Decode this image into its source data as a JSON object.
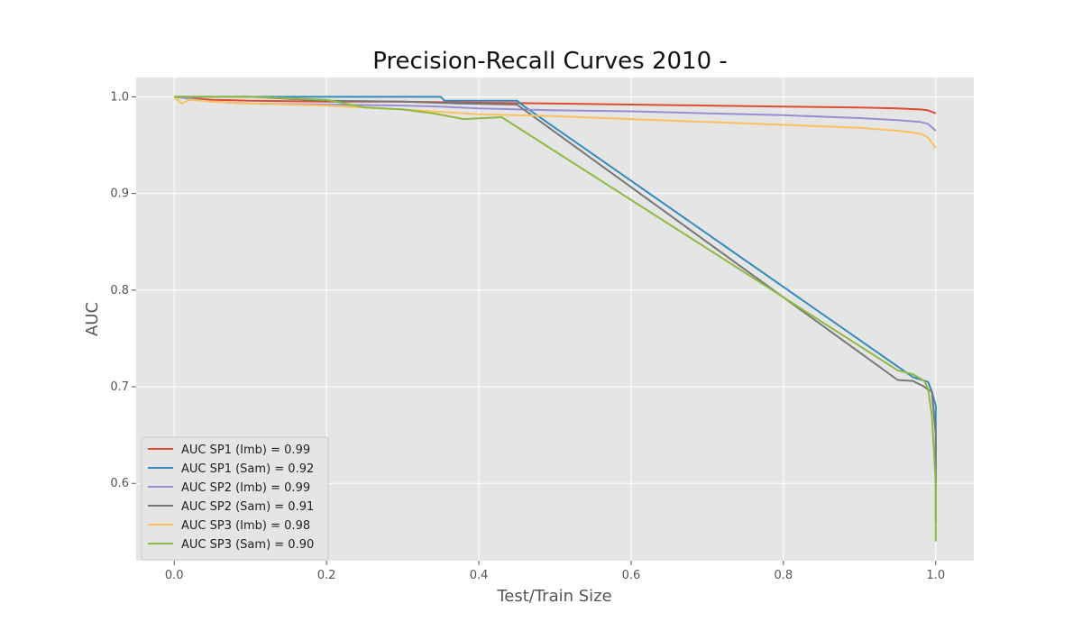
{
  "chart_data": {
    "type": "line",
    "title": "Precision-Recall Curves 2010 -",
    "xlabel": "Test/Train Size",
    "ylabel": "AUC",
    "xlim": [
      -0.05,
      1.05
    ],
    "ylim": [
      0.52,
      1.02
    ],
    "xticks": [
      0.0,
      0.2,
      0.4,
      0.6,
      0.8,
      1.0
    ],
    "xtick_labels": [
      "0.0",
      "0.2",
      "0.4",
      "0.6",
      "0.8",
      "1.0"
    ],
    "yticks": [
      0.6,
      0.7,
      0.8,
      0.9,
      1.0
    ],
    "ytick_labels": [
      "0.6",
      "0.7",
      "0.8",
      "0.9",
      "1.0"
    ],
    "grid": true,
    "legend_position": "bottom-left",
    "series": [
      {
        "name": "AUC SP1 (Imb) = 0.99",
        "color": "#E24A33",
        "x": [
          0.0,
          0.05,
          0.1,
          0.2,
          0.3,
          0.4,
          0.5,
          0.6,
          0.7,
          0.8,
          0.9,
          0.95,
          0.98,
          0.99,
          1.0
        ],
        "y": [
          1.0,
          0.997,
          0.996,
          0.995,
          0.995,
          0.994,
          0.993,
          0.992,
          0.991,
          0.99,
          0.989,
          0.988,
          0.987,
          0.986,
          0.983
        ]
      },
      {
        "name": "AUC SP1 (Sam) = 0.92",
        "color": "#348ABD",
        "x": [
          0.0,
          0.1,
          0.2,
          0.3,
          0.35,
          0.355,
          0.45,
          0.46,
          0.97,
          0.99,
          0.995,
          1.0,
          1.0
        ],
        "y": [
          1.0,
          1.0,
          1.0,
          1.0,
          1.0,
          0.996,
          0.996,
          0.99,
          0.71,
          0.705,
          0.695,
          0.68,
          0.6
        ]
      },
      {
        "name": "AUC SP2 (Imb) = 0.99",
        "color": "#988ED5",
        "x": [
          0.0,
          0.05,
          0.1,
          0.2,
          0.3,
          0.35,
          0.4,
          0.5,
          0.6,
          0.7,
          0.8,
          0.9,
          0.95,
          0.98,
          0.99,
          1.0
        ],
        "y": [
          1.0,
          0.995,
          0.993,
          0.992,
          0.991,
          0.99,
          0.988,
          0.986,
          0.985,
          0.983,
          0.981,
          0.978,
          0.976,
          0.974,
          0.972,
          0.965
        ]
      },
      {
        "name": "AUC SP2 (Sam) = 0.91",
        "color": "#777777",
        "x": [
          0.0,
          0.1,
          0.2,
          0.3,
          0.38,
          0.45,
          0.95,
          0.97,
          0.985,
          0.99,
          0.995,
          1.0,
          1.0
        ],
        "y": [
          1.0,
          1.0,
          0.996,
          0.995,
          0.993,
          0.992,
          0.707,
          0.706,
          0.7,
          0.697,
          0.695,
          0.65,
          0.56
        ]
      },
      {
        "name": "AUC SP3 (Imb) = 0.98",
        "color": "#FBC15E",
        "x": [
          0.0,
          0.01,
          0.02,
          0.05,
          0.1,
          0.2,
          0.3,
          0.4,
          0.5,
          0.6,
          0.7,
          0.8,
          0.9,
          0.95,
          0.98,
          0.99,
          1.0
        ],
        "y": [
          1.0,
          0.993,
          0.997,
          0.995,
          0.993,
          0.991,
          0.987,
          0.982,
          0.98,
          0.977,
          0.974,
          0.971,
          0.968,
          0.965,
          0.962,
          0.958,
          0.947
        ]
      },
      {
        "name": "AUC SP3 (Sam) = 0.90",
        "color": "#8EBA42",
        "x": [
          0.0,
          0.1,
          0.2,
          0.25,
          0.3,
          0.34,
          0.38,
          0.43,
          0.95,
          0.97,
          0.985,
          0.99,
          0.995,
          1.0,
          1.0
        ],
        "y": [
          1.0,
          1.0,
          0.997,
          0.989,
          0.987,
          0.983,
          0.977,
          0.979,
          0.717,
          0.713,
          0.706,
          0.698,
          0.67,
          0.6,
          0.54
        ]
      }
    ]
  }
}
